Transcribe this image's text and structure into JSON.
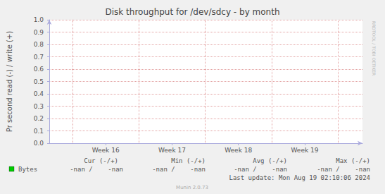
{
  "chart_data": {
    "type": "line",
    "title": "Disk throughput for /dev/sdcy - by month",
    "y_label": "Pr second read (-) / write (+)",
    "xlim": [
      15.15,
      19.87
    ],
    "xticks": [
      {
        "value": 16,
        "label": "Week 16"
      },
      {
        "value": 17,
        "label": "Week 17"
      },
      {
        "value": 18,
        "label": "Week 18"
      },
      {
        "value": 19,
        "label": "Week 19"
      }
    ],
    "ylim": [
      0,
      1
    ],
    "yticks": [
      {
        "value": 0,
        "label": "0.0"
      },
      0.1,
      0.2,
      0.3,
      0.4,
      0.5,
      0.6,
      0.7,
      0.8,
      0.9,
      {
        "value": 1,
        "label": "1.0"
      }
    ],
    "grid": true,
    "stats_headers": [
      "Cur (-/+)",
      "Min (-/+)",
      "Avg (-/+)",
      "Max (-/+)"
    ],
    "series": [
      {
        "name": "Bytes",
        "color": "#00cc00",
        "x": [],
        "values": [],
        "stats": [
          "-nan /    -nan",
          "-nan /    -nan",
          "-nan /    -nan",
          "-nan /    -nan"
        ]
      }
    ],
    "last_update": "Last update: Mon Aug 19 02:10:06 2024",
    "footer": "Munin 2.0.73",
    "watermark": "RRDTOOL / TOBI OETIKER"
  }
}
